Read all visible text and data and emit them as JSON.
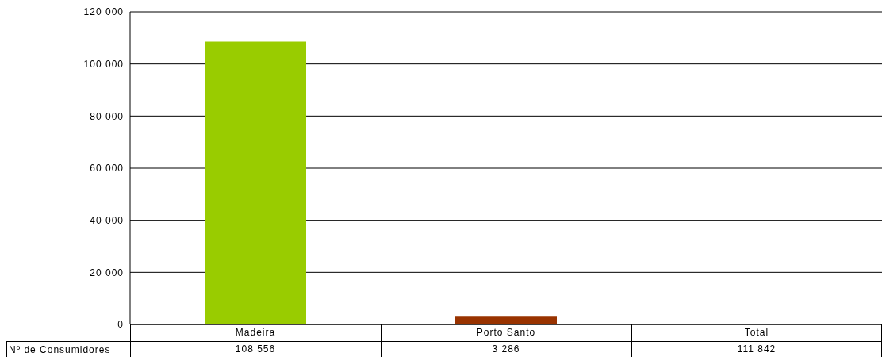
{
  "chart_data": {
    "type": "bar",
    "categories": [
      "Madeira",
      "Porto Santo",
      "Total"
    ],
    "series": [
      {
        "name": "Nº de Consumidores",
        "colors": [
          "#99cc00",
          "#993300",
          "#99cc00"
        ],
        "values": [
          108556,
          3286,
          null
        ],
        "value_labels": [
          "108 556",
          "3 286",
          "111 842"
        ]
      }
    ],
    "ylim": [
      0,
      120000
    ],
    "yticks": [
      {
        "value": 0,
        "label": "0"
      },
      {
        "value": 20000,
        "label": "20 000"
      },
      {
        "value": 40000,
        "label": "40 000"
      },
      {
        "value": 60000,
        "label": "60 000"
      },
      {
        "value": 80000,
        "label": "80 000"
      },
      {
        "value": 100000,
        "label": "100 000"
      },
      {
        "value": 120000,
        "label": "120 000"
      }
    ],
    "grid": "y",
    "legend": false
  }
}
